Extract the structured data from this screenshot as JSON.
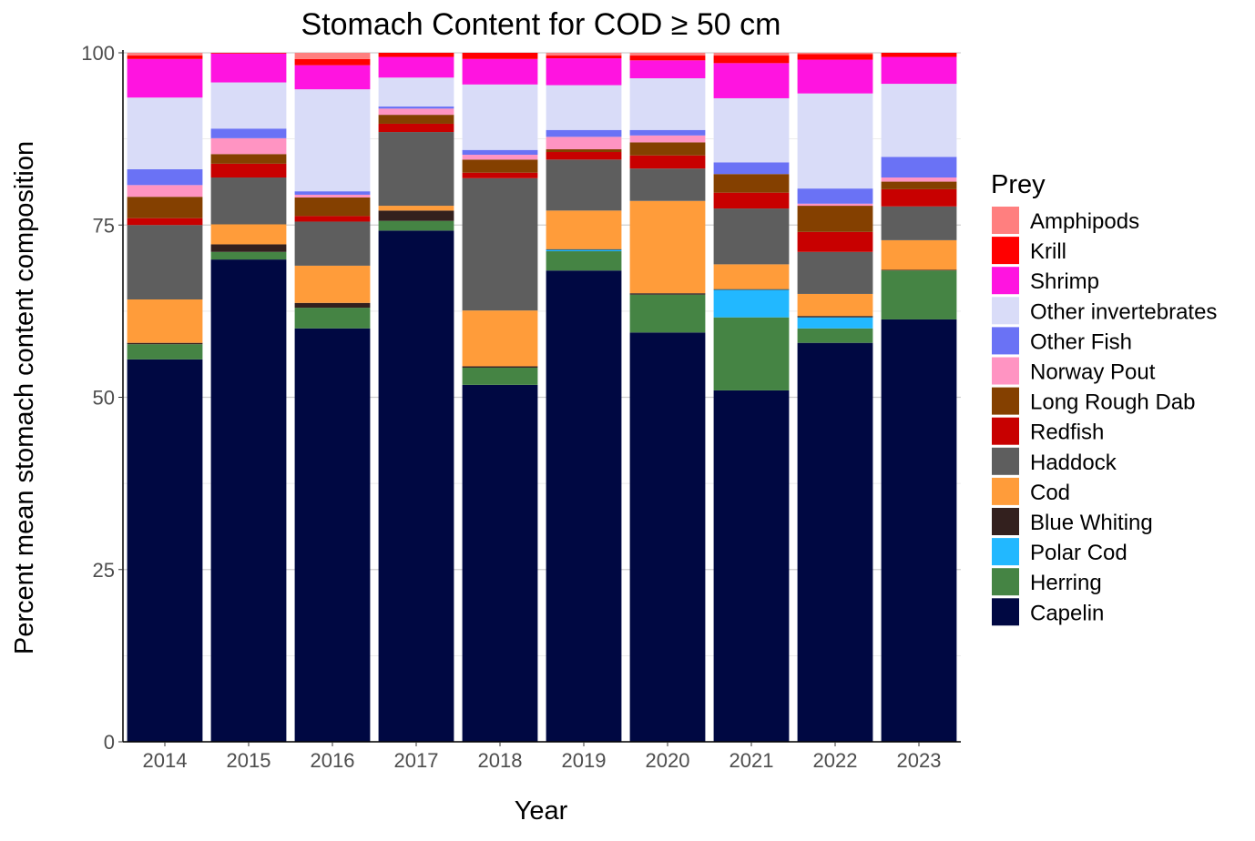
{
  "chart_data": {
    "type": "bar",
    "stacked": true,
    "title": "Stomach Content for COD ≥ 50 cm",
    "xlabel": "Year",
    "ylabel": "Percent mean stomach content composition",
    "ylim": [
      0,
      100
    ],
    "yticks": [
      "0",
      "25",
      "50",
      "75",
      "100"
    ],
    "grid": true,
    "legend_title": "Prey",
    "legend_position": "right",
    "categories": [
      "2014",
      "2015",
      "2016",
      "2017",
      "2018",
      "2019",
      "2020",
      "2021",
      "2022",
      "2023"
    ],
    "series": [
      {
        "name": "Capelin",
        "color": "#000842",
        "values": [
          55.5,
          70.0,
          60.0,
          74.2,
          51.8,
          68.4,
          59.4,
          51.0,
          57.9,
          61.3
        ]
      },
      {
        "name": "Herring",
        "color": "#458444",
        "values": [
          2.2,
          1.1,
          3.0,
          1.4,
          2.5,
          2.8,
          5.5,
          10.6,
          2.1,
          7.1
        ]
      },
      {
        "name": "Polar Cod",
        "color": "#22B8FF",
        "values": [
          0,
          0,
          0,
          0,
          0,
          0.2,
          0,
          4.0,
          1.6,
          0
        ]
      },
      {
        "name": "Blue Whiting",
        "color": "#33201E",
        "values": [
          0.2,
          1.1,
          0.7,
          1.5,
          0.2,
          0.1,
          0.2,
          0.1,
          0.2,
          0.1
        ]
      },
      {
        "name": "Cod",
        "color": "#FF9C3A",
        "values": [
          6.3,
          2.9,
          5.4,
          0.7,
          8.1,
          5.6,
          13.4,
          3.6,
          3.2,
          4.3
        ]
      },
      {
        "name": "Haddock",
        "color": "#5E5E5E",
        "values": [
          10.8,
          6.8,
          6.4,
          10.7,
          19.2,
          7.4,
          4.7,
          8.1,
          6.1,
          4.9
        ]
      },
      {
        "name": "Redfish",
        "color": "#C80000",
        "values": [
          1.0,
          2.0,
          0.8,
          1.2,
          0.8,
          1.1,
          1.9,
          2.3,
          2.9,
          2.5
        ]
      },
      {
        "name": "Long Rough Dab",
        "color": "#844000",
        "values": [
          3.1,
          1.4,
          2.7,
          1.3,
          1.9,
          0.4,
          1.9,
          2.7,
          3.8,
          1.1
        ]
      },
      {
        "name": "Norway Pout",
        "color": "#FF94C2",
        "values": [
          1.7,
          2.3,
          0.4,
          0.9,
          0.7,
          1.8,
          1.0,
          0,
          0.3,
          0.6
        ]
      },
      {
        "name": "Other Fish",
        "color": "#6A72F5",
        "values": [
          2.3,
          1.4,
          0.5,
          0.3,
          0.7,
          1.0,
          0.8,
          1.7,
          2.2,
          3.0
        ]
      },
      {
        "name": "Other invertebrates",
        "color": "#D9DCF8",
        "values": [
          10.4,
          6.7,
          14.8,
          4.2,
          9.5,
          6.5,
          7.5,
          9.3,
          13.8,
          10.6
        ]
      },
      {
        "name": "Shrimp",
        "color": "#FF14E0",
        "values": [
          5.6,
          4.2,
          3.5,
          3.0,
          3.7,
          3.9,
          2.6,
          5.1,
          4.9,
          3.9
        ]
      },
      {
        "name": "Krill",
        "color": "#FF0000",
        "values": [
          0.5,
          0.1,
          0.9,
          0.6,
          0.9,
          0.4,
          0.7,
          1.1,
          0.8,
          0.6
        ]
      },
      {
        "name": "Amphipods",
        "color": "#FF7F7F",
        "values": [
          0.4,
          0,
          0.9,
          0,
          0,
          0.4,
          0.4,
          0.4,
          0.2,
          0
        ]
      }
    ]
  }
}
